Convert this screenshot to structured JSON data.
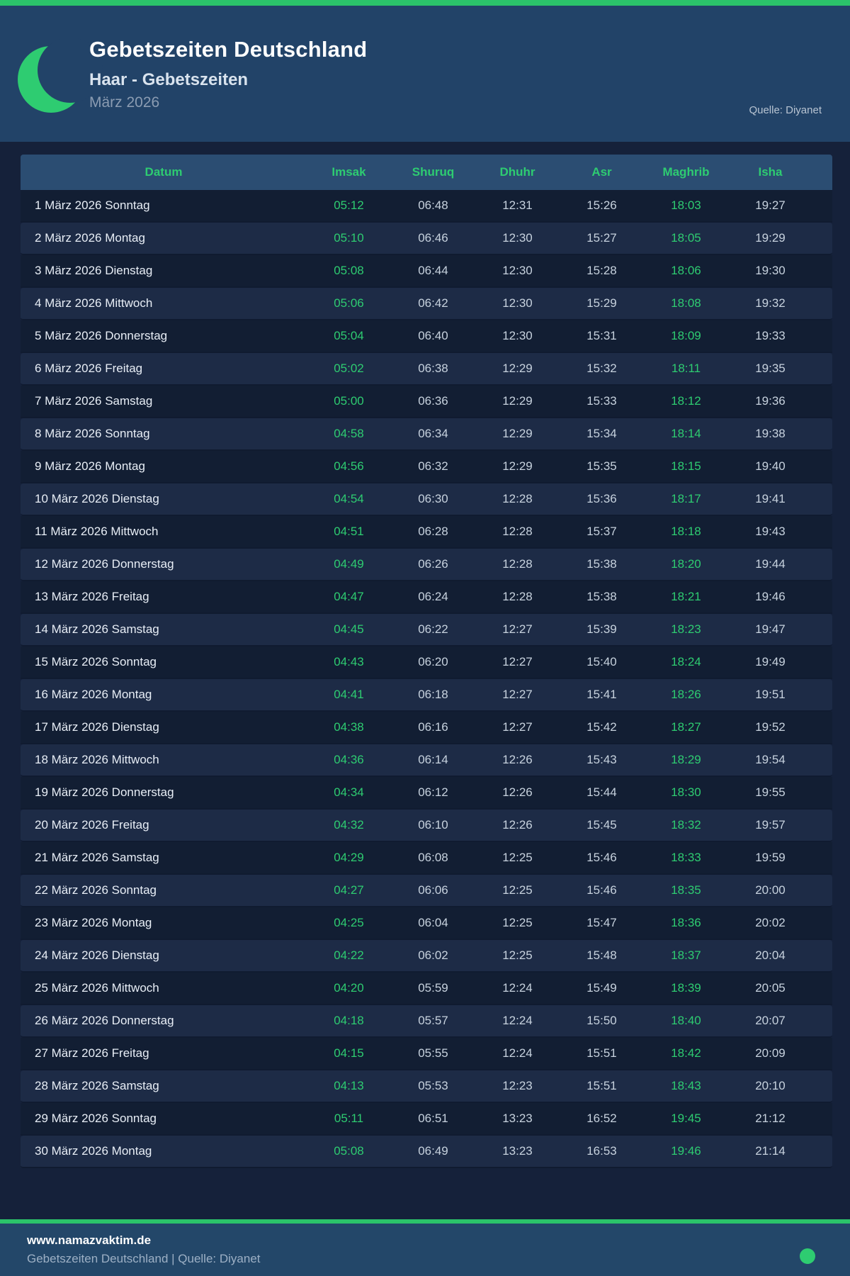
{
  "header": {
    "title": "Gebetszeiten Deutschland",
    "subtitle": "Haar - Gebetszeiten",
    "period": "März 2026",
    "source": "Quelle: Diyanet"
  },
  "table": {
    "columns": [
      "Datum",
      "Imsak",
      "Shuruq",
      "Dhuhr",
      "Asr",
      "Maghrib",
      "Isha"
    ],
    "highlight_columns": [
      "Imsak",
      "Maghrib"
    ],
    "rows": [
      [
        "1 März 2026 Sonntag",
        "05:12",
        "06:48",
        "12:31",
        "15:26",
        "18:03",
        "19:27"
      ],
      [
        "2 März 2026 Montag",
        "05:10",
        "06:46",
        "12:30",
        "15:27",
        "18:05",
        "19:29"
      ],
      [
        "3 März 2026 Dienstag",
        "05:08",
        "06:44",
        "12:30",
        "15:28",
        "18:06",
        "19:30"
      ],
      [
        "4 März 2026 Mittwoch",
        "05:06",
        "06:42",
        "12:30",
        "15:29",
        "18:08",
        "19:32"
      ],
      [
        "5 März 2026 Donnerstag",
        "05:04",
        "06:40",
        "12:30",
        "15:31",
        "18:09",
        "19:33"
      ],
      [
        "6 März 2026 Freitag",
        "05:02",
        "06:38",
        "12:29",
        "15:32",
        "18:11",
        "19:35"
      ],
      [
        "7 März 2026 Samstag",
        "05:00",
        "06:36",
        "12:29",
        "15:33",
        "18:12",
        "19:36"
      ],
      [
        "8 März 2026 Sonntag",
        "04:58",
        "06:34",
        "12:29",
        "15:34",
        "18:14",
        "19:38"
      ],
      [
        "9 März 2026 Montag",
        "04:56",
        "06:32",
        "12:29",
        "15:35",
        "18:15",
        "19:40"
      ],
      [
        "10 März 2026 Dienstag",
        "04:54",
        "06:30",
        "12:28",
        "15:36",
        "18:17",
        "19:41"
      ],
      [
        "11 März 2026 Mittwoch",
        "04:51",
        "06:28",
        "12:28",
        "15:37",
        "18:18",
        "19:43"
      ],
      [
        "12 März 2026 Donnerstag",
        "04:49",
        "06:26",
        "12:28",
        "15:38",
        "18:20",
        "19:44"
      ],
      [
        "13 März 2026 Freitag",
        "04:47",
        "06:24",
        "12:28",
        "15:38",
        "18:21",
        "19:46"
      ],
      [
        "14 März 2026 Samstag",
        "04:45",
        "06:22",
        "12:27",
        "15:39",
        "18:23",
        "19:47"
      ],
      [
        "15 März 2026 Sonntag",
        "04:43",
        "06:20",
        "12:27",
        "15:40",
        "18:24",
        "19:49"
      ],
      [
        "16 März 2026 Montag",
        "04:41",
        "06:18",
        "12:27",
        "15:41",
        "18:26",
        "19:51"
      ],
      [
        "17 März 2026 Dienstag",
        "04:38",
        "06:16",
        "12:27",
        "15:42",
        "18:27",
        "19:52"
      ],
      [
        "18 März 2026 Mittwoch",
        "04:36",
        "06:14",
        "12:26",
        "15:43",
        "18:29",
        "19:54"
      ],
      [
        "19 März 2026 Donnerstag",
        "04:34",
        "06:12",
        "12:26",
        "15:44",
        "18:30",
        "19:55"
      ],
      [
        "20 März 2026 Freitag",
        "04:32",
        "06:10",
        "12:26",
        "15:45",
        "18:32",
        "19:57"
      ],
      [
        "21 März 2026 Samstag",
        "04:29",
        "06:08",
        "12:25",
        "15:46",
        "18:33",
        "19:59"
      ],
      [
        "22 März 2026 Sonntag",
        "04:27",
        "06:06",
        "12:25",
        "15:46",
        "18:35",
        "20:00"
      ],
      [
        "23 März 2026 Montag",
        "04:25",
        "06:04",
        "12:25",
        "15:47",
        "18:36",
        "20:02"
      ],
      [
        "24 März 2026 Dienstag",
        "04:22",
        "06:02",
        "12:25",
        "15:48",
        "18:37",
        "20:04"
      ],
      [
        "25 März 2026 Mittwoch",
        "04:20",
        "05:59",
        "12:24",
        "15:49",
        "18:39",
        "20:05"
      ],
      [
        "26 März 2026 Donnerstag",
        "04:18",
        "05:57",
        "12:24",
        "15:50",
        "18:40",
        "20:07"
      ],
      [
        "27 März 2026 Freitag",
        "04:15",
        "05:55",
        "12:24",
        "15:51",
        "18:42",
        "20:09"
      ],
      [
        "28 März 2026 Samstag",
        "04:13",
        "05:53",
        "12:23",
        "15:51",
        "18:43",
        "20:10"
      ],
      [
        "29 März 2026 Sonntag",
        "05:11",
        "06:51",
        "13:23",
        "16:52",
        "19:45",
        "21:12"
      ],
      [
        "30 März 2026 Montag",
        "05:08",
        "06:49",
        "13:23",
        "16:53",
        "19:46",
        "21:14"
      ]
    ]
  },
  "footer": {
    "site": "www.namazvaktim.de",
    "line": "Gebetszeiten Deutschland | Quelle: Diyanet"
  },
  "colors": {
    "accent_green": "#2ecc71",
    "top_bar_green": "#2bc36a",
    "header_band": "#224368",
    "page_background": "#15213a",
    "table_header_background": "#2b4d72",
    "row_odd": "#121e33",
    "row_even": "#1d2b46",
    "time_text": "#c7d2de",
    "date_text": "#e8eef6"
  },
  "icons": {
    "moon": "crescent-moon-icon",
    "status": "green-dot-icon"
  }
}
